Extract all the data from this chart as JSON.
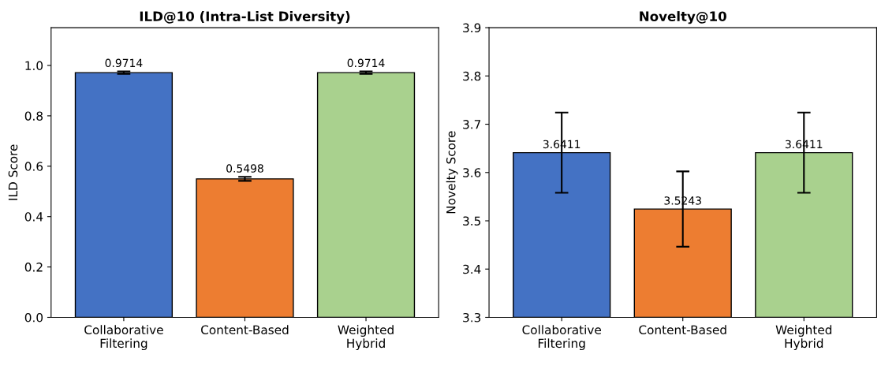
{
  "chart_data": [
    {
      "type": "bar",
      "title": "ILD@10 (Intra-List Diversity)",
      "ylabel": "ILD Score",
      "categories": [
        "Collaborative\nFiltering",
        "Content-Based",
        "Weighted\nHybrid"
      ],
      "values": [
        0.9714,
        0.5498,
        0.9714
      ],
      "errors": [
        0.005,
        0.008,
        0.005
      ],
      "colors": [
        "#4472c4",
        "#ed7d31",
        "#a9d18e"
      ],
      "ylim": [
        0,
        1.15
      ],
      "yticks": [
        {
          "value": 0,
          "label": "0.0"
        },
        0.2,
        0.4,
        0.6,
        0.8,
        {
          "value": 1,
          "label": "1.0"
        }
      ],
      "data_labels": true,
      "grid": false,
      "legend": false
    },
    {
      "type": "bar",
      "title": "Novelty@10",
      "ylabel": "Novelty Score",
      "categories": [
        "Collaborative\nFiltering",
        "Content-Based",
        "Weighted\nHybrid"
      ],
      "values": [
        3.6411,
        3.5243,
        3.6411
      ],
      "errors": [
        0.083,
        0.078,
        0.083
      ],
      "colors": [
        "#4472c4",
        "#ed7d31",
        "#a9d18e"
      ],
      "ylim": [
        3.3,
        3.9
      ],
      "yticks": [
        3.3,
        3.4,
        3.5,
        3.6,
        3.7,
        3.8,
        3.9
      ],
      "data_labels": true,
      "grid": false,
      "legend": false
    }
  ]
}
